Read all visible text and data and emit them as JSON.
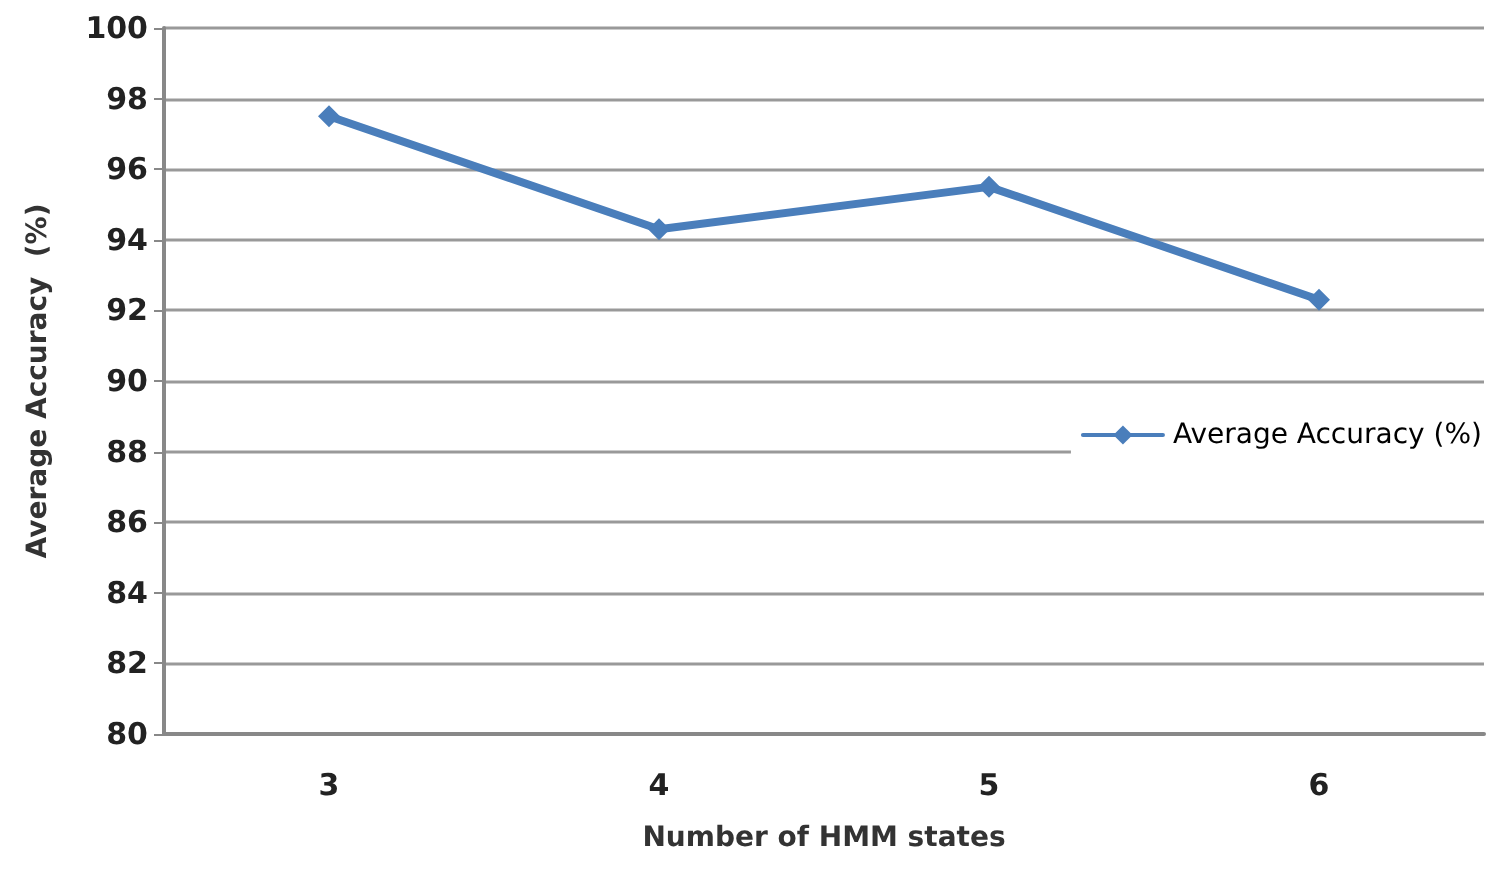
{
  "chart_data": {
    "type": "line",
    "xlabel": "Number of HMM states",
    "ylabel": "Average Accuracy  (%)",
    "categories": [
      "3",
      "4",
      "5",
      "6"
    ],
    "series": [
      {
        "name": "Average Accuracy (%)",
        "color": "#4a7ebb",
        "values": [
          97.5,
          94.3,
          95.5,
          92.3
        ]
      }
    ],
    "ylim": [
      80,
      100
    ],
    "yticks": [
      80,
      82,
      84,
      86,
      88,
      90,
      92,
      94,
      96,
      98,
      100
    ],
    "grid": "y",
    "legend": "right",
    "marker": "diamond",
    "line_style": "solid"
  }
}
